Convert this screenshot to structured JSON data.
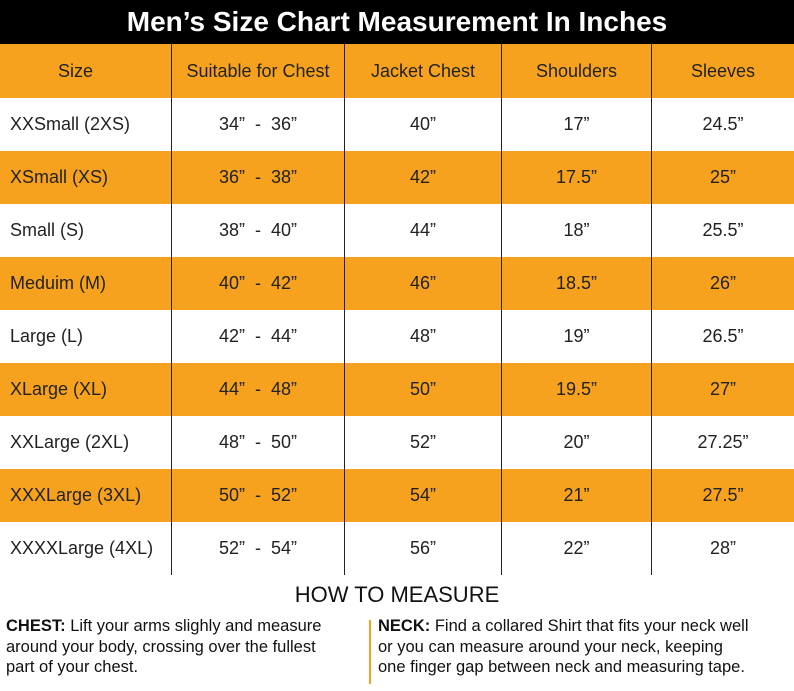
{
  "header": {
    "title": "Men’s Size Chart Measurement In Inches"
  },
  "table": {
    "columns": [
      "Size",
      "Suitable for Chest",
      "Jacket Chest",
      "Shoulders",
      "Sleeves"
    ],
    "rows": [
      [
        "XXSmall (2XS)",
        "34”  -  36”",
        "40”",
        "17”",
        "24.5”"
      ],
      [
        "XSmall (XS)",
        "36”  -  38”",
        "42”",
        "17.5”",
        "25”"
      ],
      [
        "Small (S)",
        "38”  -  40”",
        "44”",
        "18”",
        "25.5”"
      ],
      [
        "Meduim (M)",
        "40”  -  42”",
        "46”",
        "18.5”",
        "26”"
      ],
      [
        "Large (L)",
        "42”  -  44”",
        "48”",
        "19”",
        "26.5”"
      ],
      [
        "XLarge (XL)",
        "44”  -  48”",
        "50”",
        "19.5”",
        "27”"
      ],
      [
        "XXLarge (2XL)",
        "48”  -  50”",
        "52”",
        "20”",
        "27.25”"
      ],
      [
        "XXXLarge (3XL)",
        "50”  -  52”",
        "54”",
        "21”",
        "27.5”"
      ],
      [
        "XXXXLarge (4XL)",
        "52”  -  54”",
        "56”",
        "22”",
        "28”"
      ]
    ]
  },
  "measure": {
    "title": "HOW TO MEASURE",
    "chest": {
      "label": "CHEST:",
      "lines": [
        "Lift your arms slighly and measure",
        "around your body, crossing over the fullest",
        "part of your chest."
      ]
    },
    "neck": {
      "label": "NECK:",
      "lines": [
        "Find a collared Shirt that fits your neck well",
        "or you can measure around your neck, keeping",
        "one finger gap between neck and measuring tape."
      ]
    }
  }
}
